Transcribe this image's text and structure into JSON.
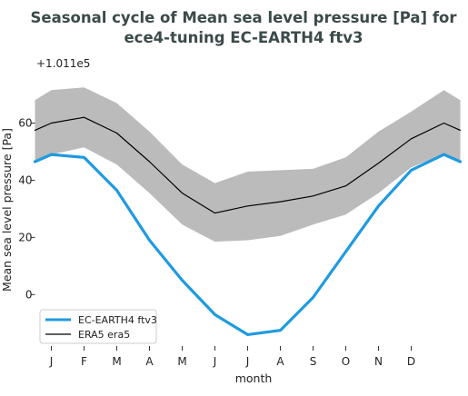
{
  "chart_data": {
    "type": "line",
    "title": "Seasonal cycle of Mean sea level pressure [Pa] for",
    "subtitle": "ece4-tuning EC-EARTH4 ftv3",
    "xlabel": "month",
    "ylabel": "Mean sea level pressure [Pa]",
    "offset_label": "+1.011e5",
    "categories": [
      "J",
      "F",
      "M",
      "A",
      "M",
      "J",
      "J",
      "A",
      "S",
      "O",
      "N",
      "D"
    ],
    "x_extent": [
      0.5,
      13.5
    ],
    "ylim": [
      -18,
      77
    ],
    "yticks": [
      0,
      20,
      40,
      60
    ],
    "grid": false,
    "legend_position": "lower-left",
    "series": [
      {
        "name": "EC-EARTH4 ftv3",
        "color": "#1f9ae0",
        "x": [
          0.5,
          1,
          2,
          3,
          4,
          5,
          6,
          7,
          8,
          9,
          10,
          11,
          12,
          13,
          13.5
        ],
        "values": [
          46.5,
          49,
          48,
          36.5,
          19,
          5,
          -7,
          -14,
          -12.5,
          -1,
          15,
          31,
          43.5,
          49,
          46.5
        ]
      },
      {
        "name": "ERA5 era5",
        "color": "#000000",
        "x": [
          0.5,
          1,
          2,
          3,
          4,
          5,
          6,
          7,
          8,
          9,
          10,
          11,
          12,
          13,
          13.5
        ],
        "values": [
          57.5,
          60,
          62,
          56.5,
          46.5,
          35.5,
          28.5,
          31,
          32.5,
          34.5,
          38,
          46,
          54.5,
          60,
          57.5
        ]
      }
    ],
    "band": {
      "color": "#bbbbbb",
      "x": [
        0.5,
        1,
        2,
        3,
        4,
        5,
        6,
        7,
        8,
        9,
        10,
        11,
        12,
        13,
        13.5
      ],
      "lower": [
        47,
        49,
        51.5,
        45.5,
        35.5,
        24.5,
        18.5,
        19,
        20.5,
        24.5,
        28,
        35.5,
        44.5,
        49,
        47
      ],
      "upper": [
        68,
        71.5,
        72.5,
        67,
        57,
        45.5,
        39,
        43,
        43.5,
        44,
        48,
        57,
        64,
        71.5,
        68
      ]
    }
  }
}
